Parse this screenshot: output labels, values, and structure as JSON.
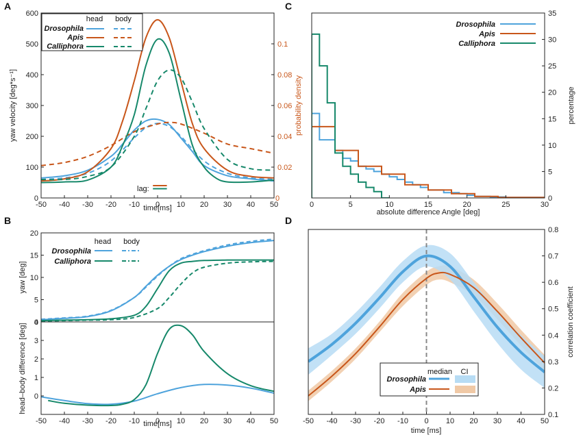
{
  "colors": {
    "drosophila": "#4ea3dc",
    "apis": "#c8561a",
    "calliphora": "#16886a",
    "axis": "#222222",
    "ci_drosophila": "#b7dcf4",
    "ci_apis": "#f0c9a6"
  },
  "chart_data": [
    {
      "panel": "A",
      "type": "line",
      "xlabel": "time[ms]",
      "ylabel": "yaw velocity [deg*s⁻¹]",
      "y2label": "probability density",
      "xlim": [
        -50,
        50
      ],
      "ylim": [
        0,
        600
      ],
      "y2lim": [
        0,
        0.12
      ],
      "xticks": [
        "-50",
        "-40",
        "-30",
        "-20",
        "-10",
        "0",
        "10",
        "20",
        "30",
        "40",
        "50"
      ],
      "yticks": [
        "0",
        "100",
        "200",
        "300",
        "400",
        "500",
        "600"
      ],
      "y2ticks": [
        "0",
        "0.02",
        "0.04",
        "0.06",
        "0.08",
        "0.1"
      ],
      "legend": {
        "col1": "head",
        "col2": "body",
        "entries": [
          "Drosophila",
          "Apis",
          "Calliphora"
        ]
      },
      "lag_label": "lag:",
      "series": [
        {
          "name": "Drosophila head",
          "color": "drosophila",
          "dash": false,
          "x": [
            -50,
            -40,
            -30,
            -20,
            -15,
            -10,
            -5,
            0,
            5,
            10,
            15,
            20,
            30,
            40,
            50
          ],
          "y": [
            65,
            72,
            90,
            135,
            175,
            220,
            250,
            255,
            238,
            195,
            150,
            105,
            72,
            62,
            55
          ]
        },
        {
          "name": "Drosophila body",
          "color": "drosophila",
          "dash": true,
          "x": [
            -50,
            -40,
            -30,
            -20,
            -10,
            -5,
            0,
            5,
            10,
            20,
            30,
            40,
            50
          ],
          "y": [
            60,
            65,
            80,
            120,
            195,
            228,
            242,
            232,
            200,
            120,
            80,
            65,
            60
          ]
        },
        {
          "name": "Apis head",
          "color": "apis",
          "dash": false,
          "x": [
            -50,
            -40,
            -30,
            -20,
            -15,
            -10,
            -5,
            0,
            5,
            10,
            15,
            20,
            30,
            40,
            50
          ],
          "y": [
            55,
            62,
            85,
            160,
            250,
            380,
            520,
            578,
            520,
            380,
            240,
            160,
            90,
            70,
            65
          ]
        },
        {
          "name": "Apis body (probability density)",
          "color": "apis",
          "dash": true,
          "axis": "y2",
          "x": [
            -50,
            -40,
            -30,
            -20,
            -10,
            0,
            5,
            10,
            20,
            30,
            40,
            50
          ],
          "y": [
            0.021,
            0.023,
            0.027,
            0.034,
            0.043,
            0.048,
            0.049,
            0.048,
            0.042,
            0.035,
            0.032,
            0.029
          ]
        },
        {
          "name": "Calliphora head",
          "color": "calliphora",
          "dash": false,
          "x": [
            -50,
            -40,
            -30,
            -20,
            -15,
            -10,
            -5,
            0,
            5,
            10,
            15,
            20,
            25,
            30,
            40,
            50
          ],
          "y": [
            50,
            52,
            58,
            100,
            170,
            270,
            430,
            515,
            470,
            320,
            170,
            100,
            65,
            52,
            52,
            58
          ]
        },
        {
          "name": "Calliphora body (probability density)",
          "color": "calliphora",
          "dash": true,
          "axis": "y2",
          "x": [
            -50,
            -40,
            -30,
            -20,
            -10,
            -5,
            0,
            5,
            10,
            15,
            20,
            30,
            40,
            50
          ],
          "y": [
            0.012,
            0.012,
            0.014,
            0.02,
            0.04,
            0.058,
            0.076,
            0.083,
            0.078,
            0.062,
            0.045,
            0.025,
            0.019,
            0.018
          ]
        },
        {
          "name": "lag Apis",
          "color": "apis",
          "dash": false,
          "x": [
            -2,
            4
          ],
          "y": [
            40,
            40
          ]
        },
        {
          "name": "lag Calliphora",
          "color": "calliphora",
          "dash": false,
          "x": [
            -2,
            4
          ],
          "y": [
            30,
            30
          ]
        }
      ]
    },
    {
      "panel": "B",
      "type": "line",
      "xlabel": "time[ms]",
      "ylabel_top": "yaw [deg]",
      "ylabel_bottom": "head–body difference [deg]",
      "xlim": [
        -50,
        50
      ],
      "ylim_top": [
        0,
        20
      ],
      "ylim_bottom": [
        -1,
        4
      ],
      "xticks": [
        "-50",
        "-40",
        "-30",
        "-20",
        "-10",
        "0",
        "10",
        "20",
        "30",
        "40",
        "50"
      ],
      "yticks_top": [
        "0",
        "5",
        "10",
        "15",
        "20"
      ],
      "yticks_bottom": [
        "0",
        "1",
        "2",
        "3",
        "4"
      ],
      "legend": {
        "col1": "head",
        "col2": "body",
        "entries": [
          "Drosophila",
          "Calliphora"
        ]
      },
      "series_top": [
        {
          "name": "Drosophila head",
          "color": "drosophila",
          "dash": false,
          "x": [
            -50,
            -40,
            -30,
            -20,
            -10,
            -5,
            0,
            5,
            10,
            15,
            20,
            30,
            40,
            50
          ],
          "y": [
            0.5,
            0.8,
            1.2,
            2.5,
            5.5,
            8,
            10.5,
            12.5,
            14,
            15,
            15.8,
            17,
            17.8,
            18.3
          ]
        },
        {
          "name": "Drosophila body",
          "color": "drosophila",
          "dash": true,
          "x": [
            -50,
            -40,
            -30,
            -20,
            -10,
            -5,
            0,
            5,
            10,
            15,
            20,
            30,
            40,
            50
          ],
          "y": [
            0.6,
            0.9,
            1.3,
            2.6,
            5.5,
            7.8,
            10.3,
            12.5,
            14.2,
            15.2,
            16,
            17.3,
            18.1,
            18.6
          ]
        },
        {
          "name": "Calliphora head",
          "color": "calliphora",
          "dash": false,
          "x": [
            -50,
            -40,
            -30,
            -20,
            -10,
            -5,
            0,
            5,
            10,
            15,
            20,
            30,
            40,
            50
          ],
          "y": [
            0.3,
            0.4,
            0.5,
            0.7,
            1.5,
            3.5,
            7.5,
            11.5,
            13.2,
            13.6,
            13.8,
            13.9,
            13.9,
            13.9
          ]
        },
        {
          "name": "Calliphora body",
          "color": "calliphora",
          "dash": true,
          "x": [
            -50,
            -40,
            -30,
            -20,
            -10,
            0,
            5,
            10,
            15,
            20,
            30,
            40,
            50
          ],
          "y": [
            0.2,
            0.3,
            0.4,
            0.5,
            1.0,
            3.0,
            5.5,
            8.5,
            11.0,
            12.3,
            13.2,
            13.5,
            13.6
          ]
        }
      ],
      "series_bottom": [
        {
          "name": "Drosophila",
          "color": "drosophila",
          "x": [
            -50,
            -40,
            -30,
            -20,
            -10,
            0,
            10,
            20,
            30,
            40,
            50
          ],
          "y": [
            -0.05,
            -0.25,
            -0.42,
            -0.45,
            -0.28,
            0.12,
            0.45,
            0.62,
            0.58,
            0.42,
            0.15
          ]
        },
        {
          "name": "Calliphora",
          "color": "calliphora",
          "x": [
            -47,
            -40,
            -30,
            -20,
            -15,
            -10,
            -5,
            0,
            5,
            10,
            15,
            20,
            30,
            40,
            50
          ],
          "y": [
            -0.25,
            -0.4,
            -0.5,
            -0.52,
            -0.45,
            -0.2,
            0.6,
            2.3,
            3.6,
            3.8,
            3.3,
            2.4,
            1.2,
            0.55,
            0.25
          ]
        }
      ]
    },
    {
      "panel": "C",
      "type": "line",
      "subtype": "step histogram",
      "xlabel": "absolute difference Angle [deg]",
      "ylabel": "percentage",
      "xlim": [
        0,
        30
      ],
      "ylim": [
        0,
        35
      ],
      "xticks": [
        "0",
        "5",
        "10",
        "15",
        "20",
        "25",
        "30"
      ],
      "yticks": [
        "0",
        "5",
        "10",
        "15",
        "20",
        "25",
        "30",
        "35"
      ],
      "legend": [
        "Drosophila",
        "Apis",
        "Calliphora"
      ],
      "series": [
        {
          "name": "Drosophila",
          "color": "drosophila",
          "edges": [
            0,
            1,
            2,
            3,
            4,
            5,
            6,
            7,
            8,
            9,
            10,
            11,
            12,
            13,
            14,
            15,
            16,
            17,
            18,
            19,
            20,
            21,
            22,
            23,
            24,
            25,
            26,
            27,
            28,
            29,
            30
          ],
          "values": [
            16,
            11,
            11,
            9,
            7.5,
            7,
            6,
            5.5,
            5,
            4.5,
            4,
            3.5,
            3,
            2.5,
            2,
            1.5,
            1.5,
            1,
            1,
            0.8,
            0.5,
            0.3,
            0.3,
            0.2,
            0.2,
            0.1,
            0.1,
            0.1,
            0.1,
            0.1
          ]
        },
        {
          "name": "Apis",
          "color": "apis",
          "edges": [
            0,
            3,
            6,
            9,
            12,
            15,
            18,
            21,
            24,
            27,
            30
          ],
          "values": [
            13.5,
            9,
            6,
            4.5,
            2.5,
            1.5,
            0.8,
            0.3,
            0.1,
            0.1
          ]
        },
        {
          "name": "Calliphora",
          "color": "calliphora",
          "edges": [
            0,
            1,
            2,
            3,
            4,
            5,
            6,
            7,
            8,
            9,
            10
          ],
          "values": [
            31,
            25,
            18,
            8.5,
            6,
            4.5,
            3,
            2,
            1.2,
            0
          ]
        }
      ]
    },
    {
      "panel": "D",
      "type": "line",
      "xlabel": "time [ms]",
      "ylabel": "correlation coefficient",
      "xlim": [
        -50,
        50
      ],
      "ylim": [
        0.1,
        0.8
      ],
      "xticks": [
        "-50",
        "-40",
        "-30",
        "-20",
        "-10",
        "0",
        "10",
        "20",
        "30",
        "40",
        "50"
      ],
      "yticks": [
        "0.1",
        "0.2",
        "0.3",
        "0.4",
        "0.5",
        "0.6",
        "0.7",
        "0.8"
      ],
      "legend": {
        "col1": "median",
        "col2": "CI",
        "entries": [
          "Drosophila",
          "Apis"
        ]
      },
      "series": [
        {
          "name": "Drosophila",
          "color": "drosophila",
          "x": [
            -50,
            -40,
            -30,
            -20,
            -10,
            0,
            10,
            20,
            30,
            40,
            50
          ],
          "median": [
            0.3,
            0.365,
            0.445,
            0.54,
            0.64,
            0.7,
            0.66,
            0.545,
            0.43,
            0.335,
            0.26
          ],
          "ci_low": [
            0.25,
            0.325,
            0.405,
            0.5,
            0.6,
            0.66,
            0.61,
            0.49,
            0.37,
            0.27,
            0.2
          ],
          "ci_high": [
            0.35,
            0.405,
            0.485,
            0.58,
            0.68,
            0.74,
            0.71,
            0.6,
            0.49,
            0.4,
            0.32
          ]
        },
        {
          "name": "Apis",
          "color": "apis",
          "x": [
            -50,
            -40,
            -30,
            -20,
            -10,
            0,
            5,
            10,
            20,
            30,
            40,
            50
          ],
          "median": [
            0.17,
            0.245,
            0.33,
            0.43,
            0.535,
            0.615,
            0.635,
            0.63,
            0.58,
            0.49,
            0.39,
            0.295
          ],
          "ci_low": [
            0.15,
            0.225,
            0.31,
            0.41,
            0.51,
            0.59,
            0.61,
            0.6,
            0.55,
            0.46,
            0.36,
            0.265
          ],
          "ci_high": [
            0.19,
            0.265,
            0.35,
            0.45,
            0.56,
            0.64,
            0.66,
            0.66,
            0.61,
            0.52,
            0.42,
            0.325
          ]
        }
      ]
    }
  ]
}
